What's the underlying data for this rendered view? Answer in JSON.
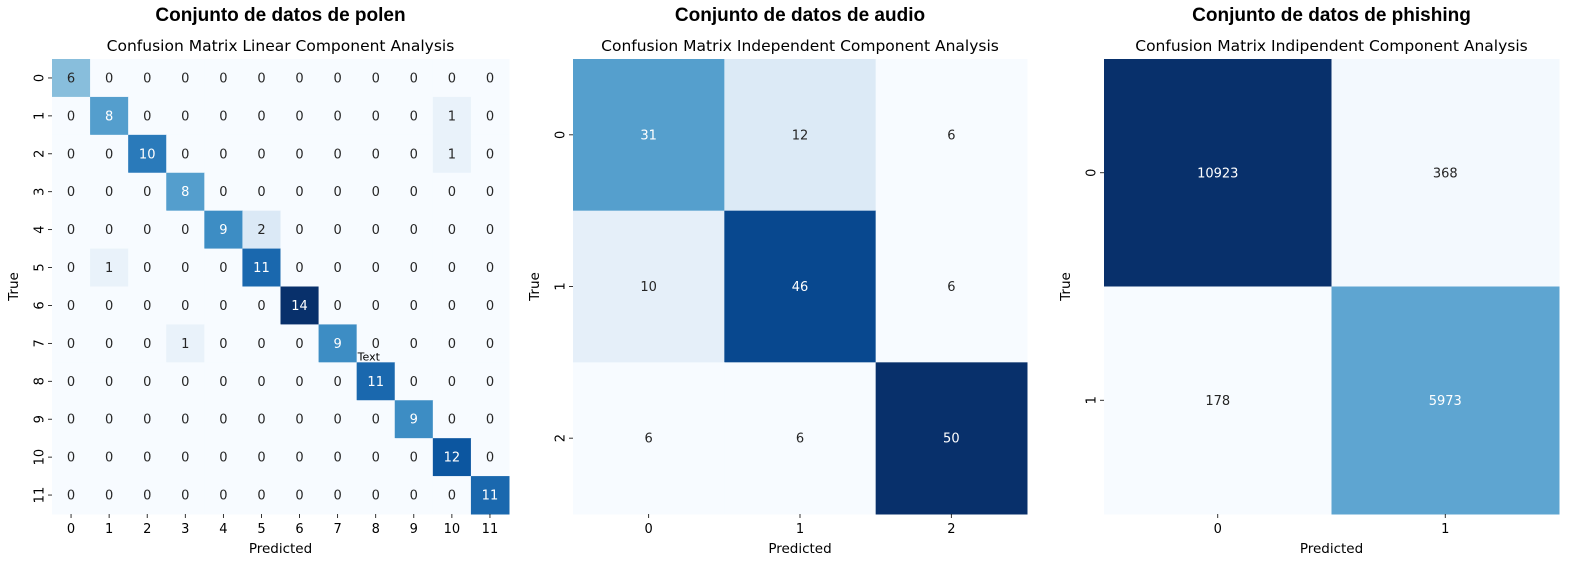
{
  "chart_data": [
    {
      "type": "heatmap",
      "suptitle": "Conjunto de datos de polen",
      "title": "Confusion Matrix Linear Component Analysis",
      "xlabel": "Predicted",
      "ylabel": "True",
      "x_ticks": [
        "0",
        "1",
        "2",
        "3",
        "4",
        "5",
        "6",
        "7",
        "8",
        "9",
        "10",
        "11"
      ],
      "y_ticks": [
        "0",
        "1",
        "2",
        "3",
        "4",
        "5",
        "6",
        "7",
        "8",
        "9",
        "10",
        "11"
      ],
      "colormap": "Blues",
      "values": [
        [
          6,
          0,
          0,
          0,
          0,
          0,
          0,
          0,
          0,
          0,
          0,
          0
        ],
        [
          0,
          8,
          0,
          0,
          0,
          0,
          0,
          0,
          0,
          0,
          1,
          0
        ],
        [
          0,
          0,
          10,
          0,
          0,
          0,
          0,
          0,
          0,
          0,
          1,
          0
        ],
        [
          0,
          0,
          0,
          8,
          0,
          0,
          0,
          0,
          0,
          0,
          0,
          0
        ],
        [
          0,
          0,
          0,
          0,
          9,
          2,
          0,
          0,
          0,
          0,
          0,
          0
        ],
        [
          0,
          1,
          0,
          0,
          0,
          11,
          0,
          0,
          0,
          0,
          0,
          0
        ],
        [
          0,
          0,
          0,
          0,
          0,
          0,
          14,
          0,
          0,
          0,
          0,
          0
        ],
        [
          0,
          0,
          0,
          1,
          0,
          0,
          0,
          9,
          0,
          0,
          0,
          0
        ],
        [
          0,
          0,
          0,
          0,
          0,
          0,
          0,
          0,
          11,
          0,
          0,
          0
        ],
        [
          0,
          0,
          0,
          0,
          0,
          0,
          0,
          0,
          0,
          9,
          0,
          0
        ],
        [
          0,
          0,
          0,
          0,
          0,
          0,
          0,
          0,
          0,
          0,
          12,
          0
        ],
        [
          0,
          0,
          0,
          0,
          0,
          0,
          0,
          0,
          0,
          0,
          0,
          11
        ]
      ],
      "annotation": "Text"
    },
    {
      "type": "heatmap",
      "suptitle": "Conjunto de datos de audio",
      "title": "Confusion Matrix Independent Component Analysis",
      "xlabel": "Predicted",
      "ylabel": "True",
      "x_ticks": [
        "0",
        "1",
        "2"
      ],
      "y_ticks": [
        "0",
        "1",
        "2"
      ],
      "colormap": "Blues",
      "values": [
        [
          31,
          12,
          6
        ],
        [
          10,
          46,
          6
        ],
        [
          6,
          6,
          50
        ]
      ]
    },
    {
      "type": "heatmap",
      "suptitle": "Conjunto de datos de phishing",
      "title": "Confusion Matrix Indipendent Component Analysis",
      "xlabel": "Predicted",
      "ylabel": "True",
      "x_ticks": [
        "0",
        "1"
      ],
      "y_ticks": [
        "0",
        "1"
      ],
      "colormap": "Blues",
      "values": [
        [
          10923,
          368
        ],
        [
          178,
          5973
        ]
      ]
    }
  ]
}
